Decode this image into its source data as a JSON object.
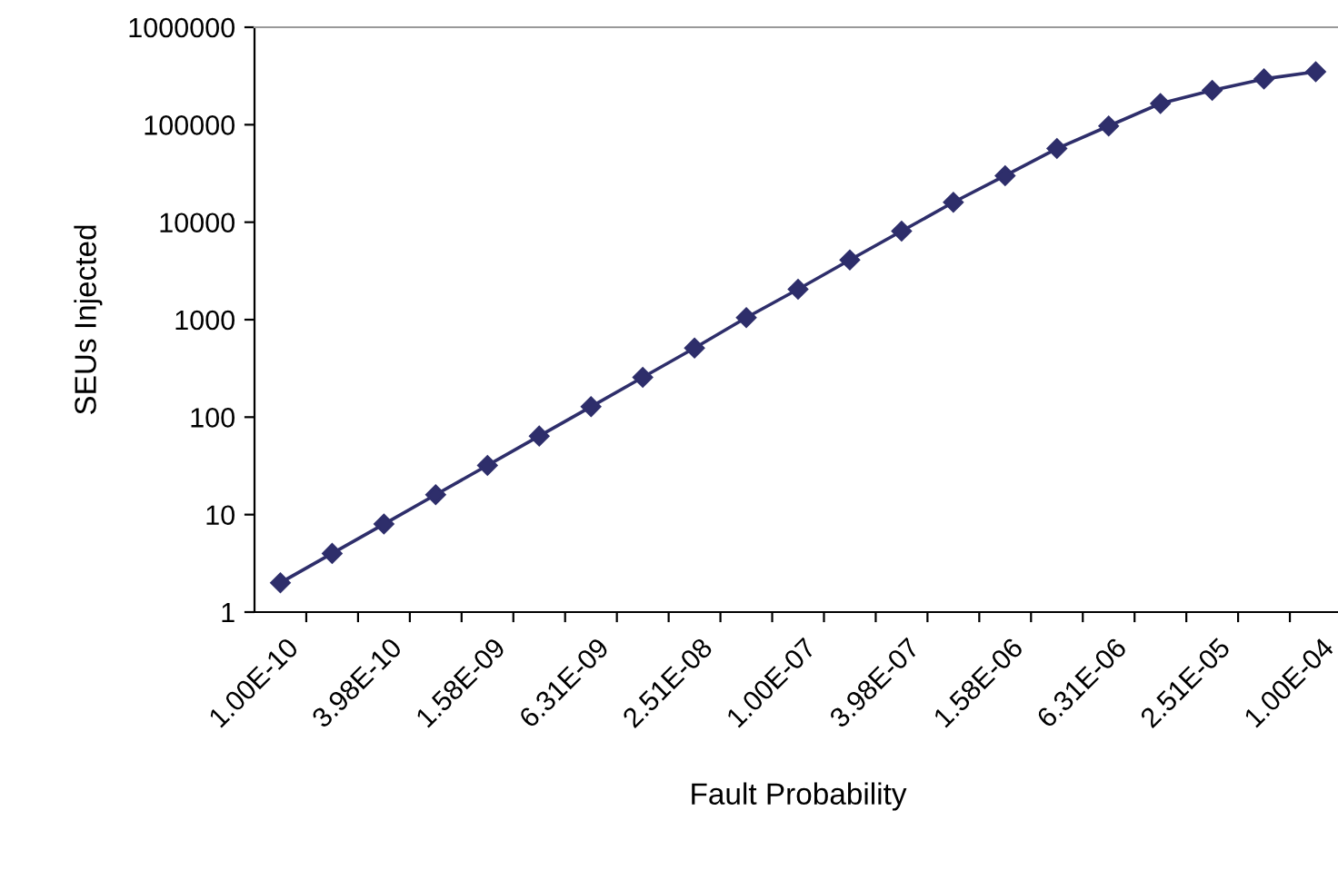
{
  "chart_data": {
    "type": "line",
    "xlabel": "Fault Probability",
    "ylabel": "SEUs Injected",
    "categories": [
      "1.00E-10",
      null,
      "3.98E-10",
      null,
      "1.58E-09",
      null,
      "6.31E-09",
      null,
      "2.51E-08",
      null,
      "1.00E-07",
      null,
      "3.98E-07",
      null,
      "1.58E-06",
      null,
      "6.31E-06",
      null,
      "2.51E-05",
      null,
      "1.00E-04"
    ],
    "series": [
      {
        "color": "#2e2e6b",
        "values": [
          2,
          4,
          8,
          16,
          32,
          64,
          128,
          256,
          512,
          1050,
          2050,
          4100,
          8100,
          16000,
          30000,
          57000,
          97000,
          165000,
          225000,
          295000,
          350000
        ]
      }
    ],
    "log": "y",
    "ylim": [
      1,
      1000000
    ],
    "yticks": [
      1,
      10,
      100,
      1000,
      10000,
      100000,
      1000000
    ],
    "marker": "diamond",
    "line_style": "solid",
    "grid": false,
    "legend": false
  }
}
